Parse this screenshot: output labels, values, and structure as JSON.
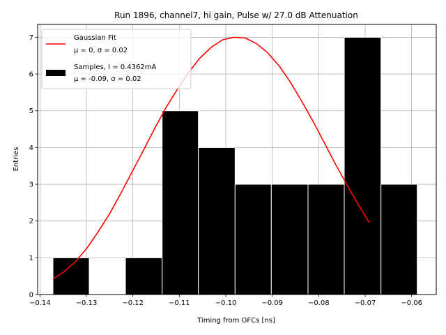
{
  "chart_data": {
    "type": "bar",
    "title": "Run 1896, channel7, hi gain, Pulse w/ 27.0 dB Attenuation",
    "xlabel": "Timing from OFCs [ns]",
    "ylabel": "Entries",
    "xlim": [
      -0.1405,
      -0.0547
    ],
    "ylim": [
      0,
      7.35
    ],
    "grid": true,
    "legend_position": "upper-left",
    "x_ticks": [
      -0.14,
      -0.13,
      -0.12,
      -0.11,
      -0.1,
      -0.09,
      -0.08,
      -0.07,
      -0.06
    ],
    "x_tick_labels": [
      "−0.14",
      "−0.13",
      "−0.12",
      "−0.11",
      "−0.10",
      "−0.09",
      "−0.08",
      "−0.07",
      "−0.06"
    ],
    "y_ticks": [
      0,
      1,
      2,
      3,
      4,
      5,
      6,
      7
    ],
    "y_tick_labels": [
      "0",
      "1",
      "2",
      "3",
      "4",
      "5",
      "6",
      "7"
    ],
    "histogram": {
      "name": "Samples, I = 0.4362mA",
      "stats": "μ = -0.09, σ = 0.02",
      "color": "#000000",
      "edge_color": "#ffffff",
      "bins": [
        {
          "x0": -0.1372,
          "x1": -0.1294,
          "count": 1
        },
        {
          "x0": -0.1294,
          "x1": -0.1216,
          "count": 0
        },
        {
          "x0": -0.1216,
          "x1": -0.1137,
          "count": 1
        },
        {
          "x0": -0.1137,
          "x1": -0.1059,
          "count": 5
        },
        {
          "x0": -0.1059,
          "x1": -0.098,
          "count": 4
        },
        {
          "x0": -0.098,
          "x1": -0.0902,
          "count": 3
        },
        {
          "x0": -0.0902,
          "x1": -0.0823,
          "count": 3
        },
        {
          "x0": -0.0823,
          "x1": -0.0745,
          "count": 3
        },
        {
          "x0": -0.0745,
          "x1": -0.0666,
          "count": 7
        },
        {
          "x0": -0.0666,
          "x1": -0.0588,
          "count": 3
        }
      ]
    },
    "fit": {
      "name": "Gaussian Fit",
      "stats": "μ = 0, σ = 0.02",
      "color": "#ff0000",
      "points": [
        [
          -0.1372,
          0.42
        ],
        [
          -0.1348,
          0.62
        ],
        [
          -0.1323,
          0.9
        ],
        [
          -0.1299,
          1.26
        ],
        [
          -0.1275,
          1.7
        ],
        [
          -0.125,
          2.2
        ],
        [
          -0.1226,
          2.75
        ],
        [
          -0.1202,
          3.33
        ],
        [
          -0.1177,
          3.93
        ],
        [
          -0.1153,
          4.52
        ],
        [
          -0.1129,
          5.08
        ],
        [
          -0.1104,
          5.59
        ],
        [
          -0.108,
          6.04
        ],
        [
          -0.1056,
          6.43
        ],
        [
          -0.1031,
          6.73
        ],
        [
          -0.1007,
          6.93
        ],
        [
          -0.0983,
          7.0
        ],
        [
          -0.0958,
          6.98
        ],
        [
          -0.0934,
          6.83
        ],
        [
          -0.091,
          6.58
        ],
        [
          -0.0885,
          6.22
        ],
        [
          -0.0861,
          5.78
        ],
        [
          -0.0837,
          5.27
        ],
        [
          -0.0812,
          4.71
        ],
        [
          -0.0788,
          4.13
        ],
        [
          -0.0764,
          3.55
        ],
        [
          -0.0739,
          2.98
        ],
        [
          -0.0715,
          2.45
        ],
        [
          -0.0691,
          1.96
        ]
      ]
    }
  }
}
